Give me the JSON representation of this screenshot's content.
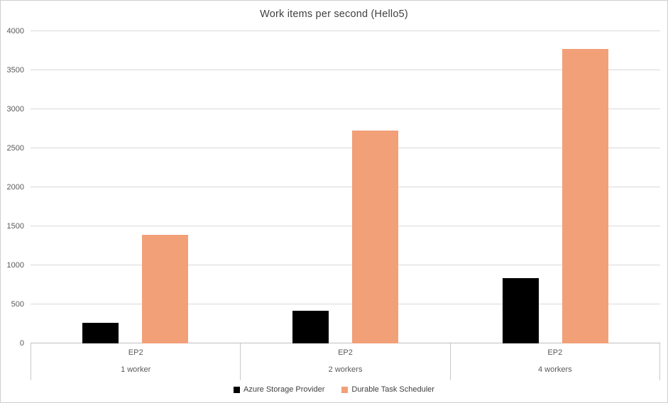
{
  "chart_data": {
    "type": "bar",
    "title": "Work items per second (Hello5)",
    "categories_top": [
      "EP2",
      "EP2",
      "EP2"
    ],
    "categories_bottom": [
      "1 worker",
      "2 workers",
      "4 workers"
    ],
    "series": [
      {
        "name": "Azure Storage Provider",
        "color": "#000000",
        "values": [
          260,
          420,
          840
        ]
      },
      {
        "name": "Durable Task Scheduler",
        "color": "#f1a078",
        "values": [
          1390,
          2730,
          3770
        ]
      }
    ],
    "ylim": [
      0,
      4000
    ],
    "y_ticks": [
      0,
      500,
      1000,
      1500,
      2000,
      2500,
      3000,
      3500,
      4000
    ],
    "xlabel": "",
    "ylabel": "",
    "grid": "horizontal",
    "legend_position": "bottom"
  }
}
